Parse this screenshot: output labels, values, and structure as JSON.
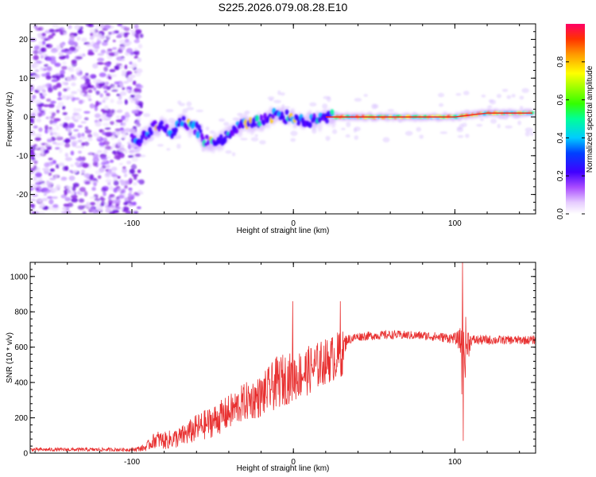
{
  "title": "S225.2026.079.08.28.E10",
  "chart_data": [
    {
      "type": "heatmap",
      "xlabel": "Height of straight line (km)",
      "ylabel": "Frequency (Hz)",
      "xlim": [
        -163,
        150
      ],
      "ylim": [
        -25,
        24
      ],
      "xticks": [
        "-100",
        "0",
        "100"
      ],
      "yticks": [
        "20",
        "10",
        "0",
        "-10",
        "-20"
      ],
      "noise_region_x": [
        -163,
        -98
      ],
      "signal_track": {
        "x": [
          -100,
          -95,
          -90,
          -85,
          -80,
          -75,
          -70,
          -65,
          -60,
          -55,
          -50,
          -45,
          -40,
          -35,
          -30,
          -25,
          -20,
          -15,
          -10,
          -5,
          0,
          5,
          10,
          15,
          20,
          25,
          30,
          40,
          50,
          60,
          70,
          80,
          90,
          100,
          110,
          120,
          130,
          140,
          148
        ],
        "freq_hz": [
          -5,
          -6,
          -4,
          -2,
          -3,
          -4,
          -1,
          -2,
          -3,
          -6,
          -7,
          -6,
          -5,
          -3,
          -1,
          -2,
          -1,
          0,
          1,
          0,
          0,
          -1,
          -1,
          -1,
          0,
          0,
          0,
          0,
          0,
          0,
          0,
          0,
          0,
          0,
          0.5,
          1,
          1,
          1,
          1
        ]
      },
      "colorbar": {
        "label": "Normalized spectral amplitude",
        "ticks": [
          "0.0",
          "0.2",
          "0.4",
          "0.6",
          "0.8"
        ],
        "range": [
          0,
          1
        ]
      }
    },
    {
      "type": "line",
      "xlabel": "Height of straight line (km)",
      "ylabel": "SNR (10 * v/v)",
      "xlim": [
        -163,
        150
      ],
      "ylim": [
        0,
        1080
      ],
      "xticks": [
        "-100",
        "0",
        "100"
      ],
      "yticks": [
        "0",
        "200",
        "400",
        "600",
        "800",
        "1000"
      ],
      "series_name": "SNR",
      "color": "#e83030",
      "envelope": {
        "x": [
          -163,
          -100,
          -92,
          -85,
          -80,
          -70,
          -60,
          -50,
          -40,
          -30,
          -20,
          -10,
          -5,
          0,
          10,
          20,
          30,
          33,
          40,
          60,
          80,
          100,
          103,
          104,
          105,
          106,
          110,
          130,
          150
        ],
        "mean": [
          20,
          20,
          30,
          80,
          70,
          90,
          140,
          180,
          230,
          290,
          320,
          400,
          420,
          430,
          470,
          520,
          560,
          640,
          660,
          670,
          665,
          650,
          640,
          620,
          400,
          600,
          640,
          640,
          640
        ],
        "spread": [
          10,
          10,
          20,
          50,
          50,
          60,
          80,
          90,
          100,
          110,
          120,
          150,
          150,
          140,
          140,
          130,
          140,
          30,
          25,
          25,
          25,
          30,
          60,
          200,
          350,
          200,
          30,
          25,
          25
        ]
      },
      "spikes": [
        {
          "x": -0.5,
          "y": 860
        },
        {
          "x": 29,
          "y": 860
        },
        {
          "x": 104.8,
          "y": 1080
        },
        {
          "x": 105.2,
          "y": 70
        }
      ]
    }
  ]
}
